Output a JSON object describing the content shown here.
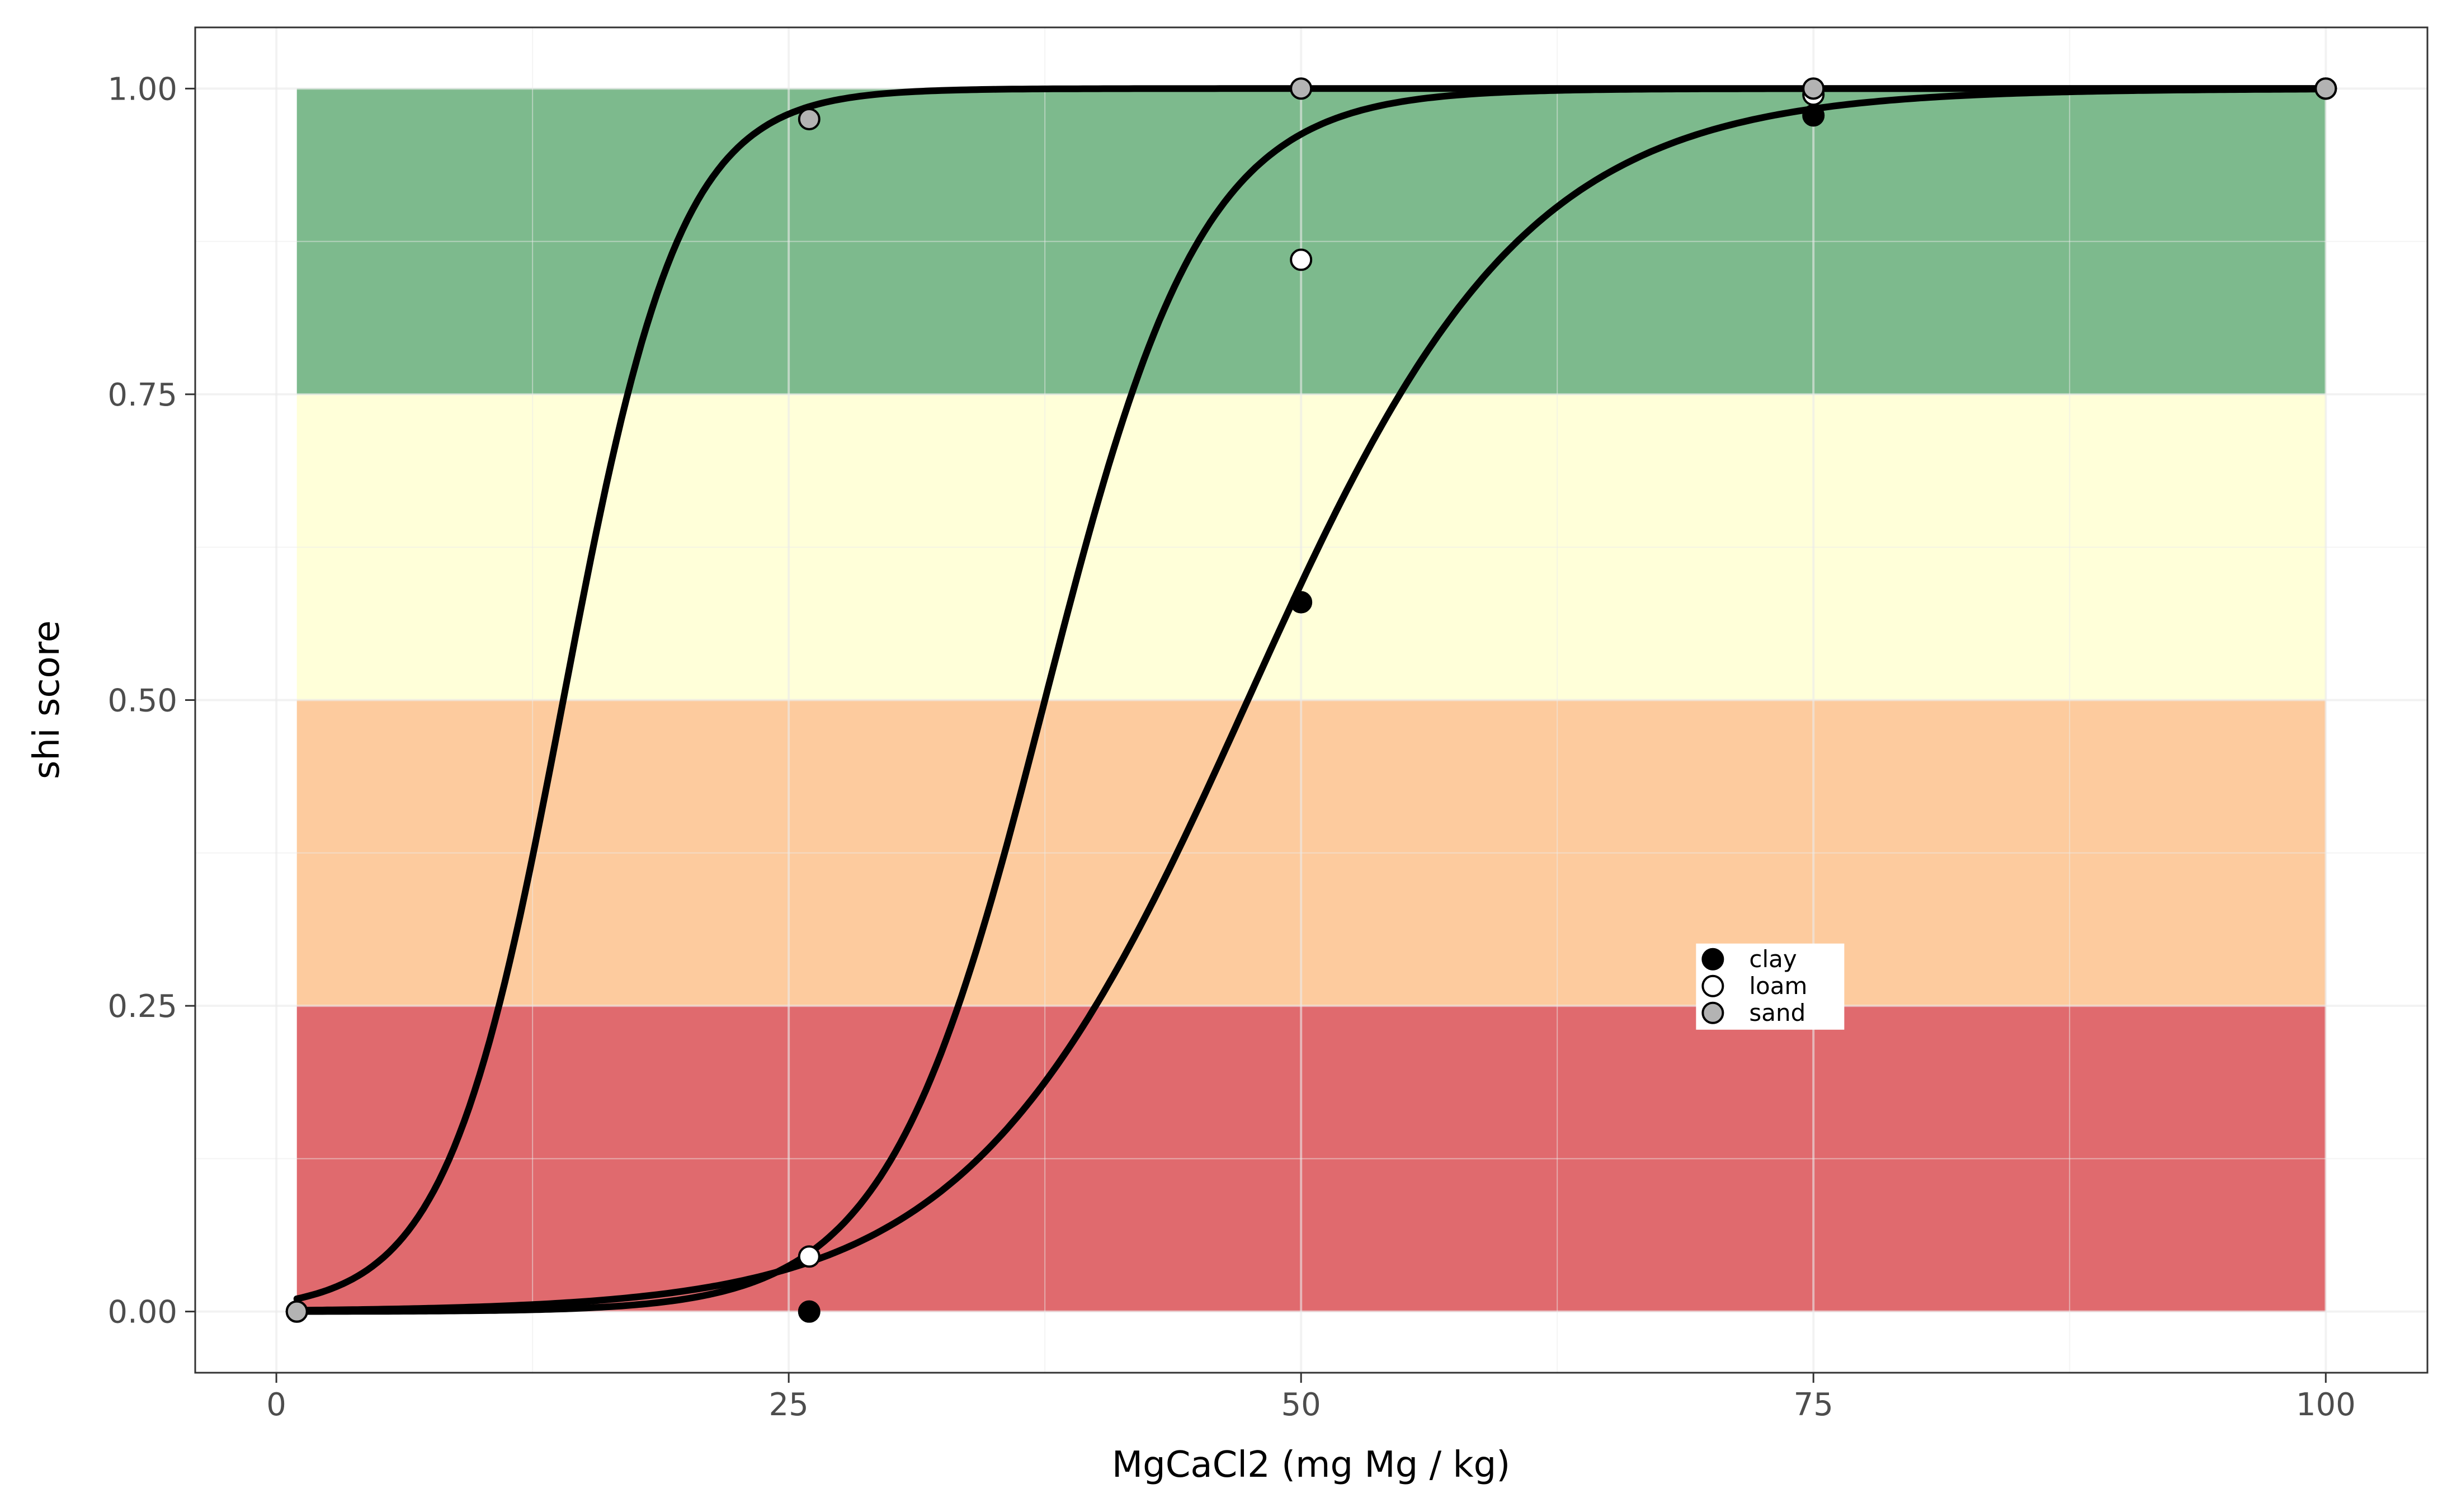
{
  "chart_data": {
    "type": "line",
    "title": "",
    "xlabel": "MgCaCl2 (mg Mg / kg)",
    "ylabel": "shi score",
    "xlim": [
      -3.96,
      104.96
    ],
    "ylim": [
      -0.05,
      1.05
    ],
    "x_ticks": [
      0,
      25,
      50,
      75,
      100
    ],
    "y_ticks": [
      0,
      0.25,
      0.5,
      0.75,
      1
    ],
    "x_tick_labels": [
      "0",
      "25",
      "50",
      "75",
      "100"
    ],
    "y_tick_labels": [
      "0.00",
      "0.25",
      "0.50",
      "0.75",
      "1.00"
    ],
    "grid": true,
    "bands": [
      {
        "ymin": 0,
        "ymax": 0.25,
        "color": "#E06A6E"
      },
      {
        "ymin": 0.25,
        "ymax": 0.5,
        "color": "#FDCB9E"
      },
      {
        "ymin": 0.5,
        "ymax": 0.75,
        "color": "#FFFFD9"
      },
      {
        "ymin": 0.75,
        "ymax": 1,
        "color": "#7DBA8D"
      }
    ],
    "band_x_range": [
      1,
      100
    ],
    "series": [
      {
        "name": "clay",
        "fill": "#000000",
        "curve": {
          "x0": 47.4,
          "k": 0.148
        },
        "x": [
          1,
          26,
          50,
          75,
          100
        ],
        "y": [
          0.0,
          0.0,
          0.58,
          0.978,
          1.0
        ]
      },
      {
        "name": "loam",
        "fill": "#ffffff",
        "curve": {
          "x0": 37.5,
          "k": 0.26
        },
        "x": [
          1,
          26,
          50,
          75,
          100
        ],
        "y": [
          0.0,
          0.045,
          0.86,
          0.995,
          1.0
        ]
      },
      {
        "name": "sand",
        "fill": "#b3b3b3",
        "curve": {
          "x0": 14.0,
          "k": 0.35
        },
        "x": [
          1,
          26,
          50,
          75,
          100
        ],
        "y": [
          0.0,
          0.975,
          1.0,
          1.0,
          1.0
        ]
      }
    ],
    "legend": {
      "position": "inside",
      "at": [
        69,
        0.3
      ]
    }
  }
}
